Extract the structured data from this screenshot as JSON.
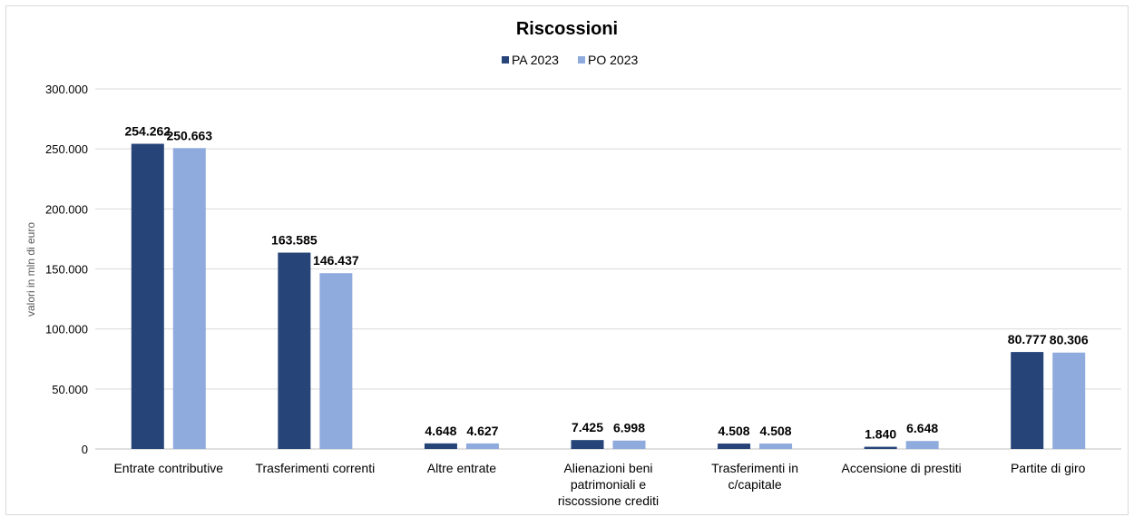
{
  "chart_data": {
    "type": "bar",
    "title": "Riscossioni",
    "ylabel": "valori in mln di euro",
    "xlabel": "",
    "ylim": [
      0,
      300000
    ],
    "yticks": [
      0,
      50000,
      100000,
      150000,
      200000,
      250000,
      300000
    ],
    "ytick_labels": [
      "0",
      "50.000",
      "100.000",
      "150.000",
      "200.000",
      "250.000",
      "300.000"
    ],
    "grid": true,
    "legend_position": "top",
    "categories": [
      [
        "Entrate contributive"
      ],
      [
        "Trasferimenti correnti"
      ],
      [
        "Altre entrate"
      ],
      [
        "Alienazioni beni",
        "patrimoniali e",
        "riscossione crediti"
      ],
      [
        "Trasferimenti in",
        "c/capitale"
      ],
      [
        "Accensione di prestiti"
      ],
      [
        "Partite di giro"
      ]
    ],
    "series": [
      {
        "name": "PA 2023",
        "color": "#264478",
        "values": [
          254262,
          163585,
          4648,
          7425,
          4508,
          1840,
          80777
        ],
        "labels": [
          "254.262",
          "163.585",
          "4.648",
          "7.425",
          "4.508",
          "1.840",
          "80.777"
        ]
      },
      {
        "name": "PO 2023",
        "color": "#8faadc",
        "values": [
          250663,
          146437,
          4627,
          6998,
          4508,
          6648,
          80306
        ],
        "labels": [
          "250.663",
          "146.437",
          "4.627",
          "6.998",
          "4.508",
          "6.648",
          "80.306"
        ]
      }
    ]
  }
}
